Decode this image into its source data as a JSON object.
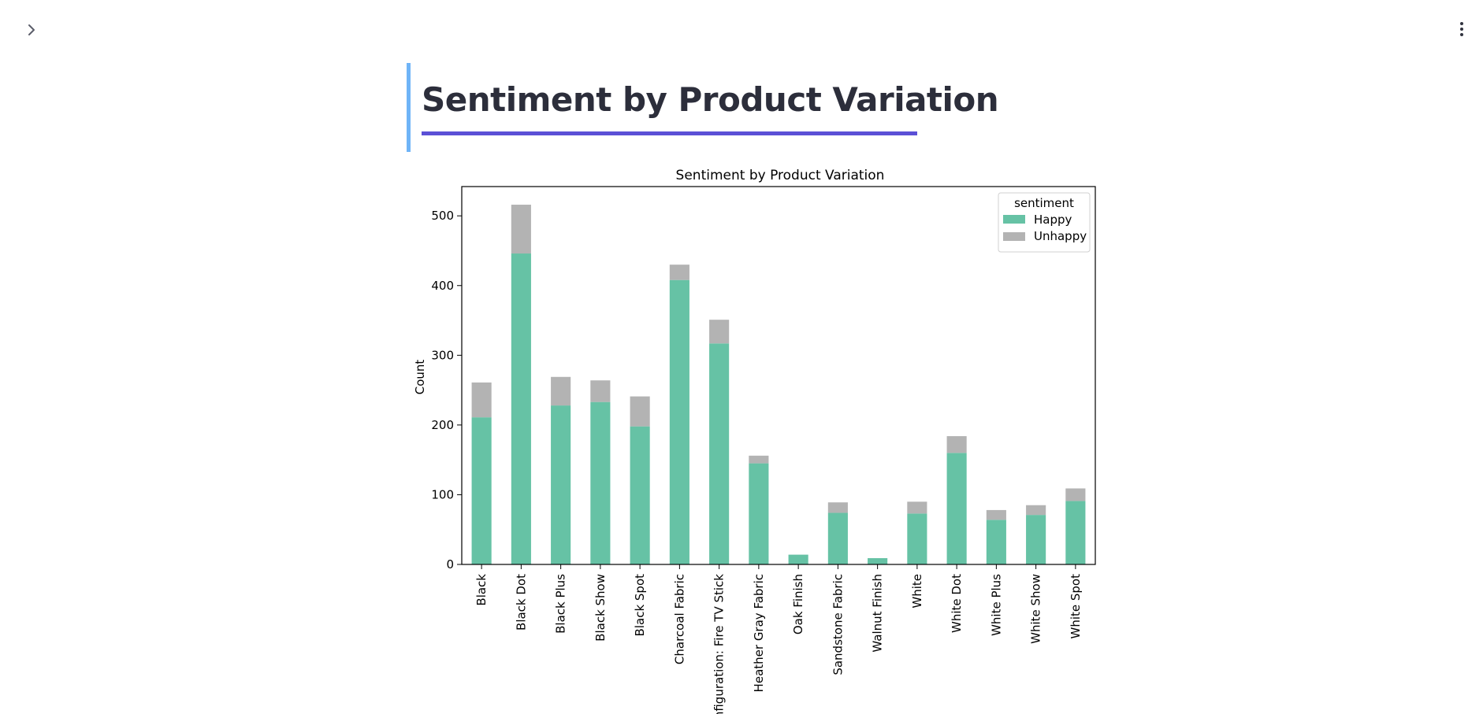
{
  "header": {
    "sidebar_toggle_icon": "chevron-right-icon",
    "menu_icon": "vertical-dots-icon"
  },
  "page": {
    "title": "Sentiment by Product Variation"
  },
  "colors": {
    "happy": "#66c2a5",
    "unhappy": "#b3b3b3",
    "title_accent": "#6fb4f7",
    "title_underline": "#5b50d6"
  },
  "chart_data": {
    "type": "bar",
    "stacked": true,
    "title": "Sentiment by Product Variation",
    "xlabel": "",
    "ylabel": "Count",
    "ylim": [
      0,
      542
    ],
    "yticks": [
      0,
      100,
      200,
      300,
      400,
      500
    ],
    "legend": {
      "title": "sentiment",
      "placement": "top-right"
    },
    "categories": [
      "Black",
      "Black  Dot",
      "Black  Plus",
      "Black  Show",
      "Black  Spot",
      "Charcoal Fabric",
      "Configuration: Fire TV Stick",
      "Heather Gray Fabric",
      "Oak Finish",
      "Sandstone Fabric",
      "Walnut Finish",
      "White",
      "White  Dot",
      "White  Plus",
      "White  Show",
      "White  Spot"
    ],
    "series": [
      {
        "name": "Happy",
        "color": "#66c2a5",
        "values": [
          211,
          446,
          228,
          233,
          198,
          408,
          317,
          145,
          14,
          74,
          9,
          73,
          160,
          64,
          71,
          91
        ]
      },
      {
        "name": "Unhappy",
        "color": "#b3b3b3",
        "values": [
          50,
          70,
          41,
          31,
          43,
          22,
          34,
          11,
          0,
          15,
          0,
          17,
          24,
          14,
          14,
          18
        ]
      }
    ]
  }
}
